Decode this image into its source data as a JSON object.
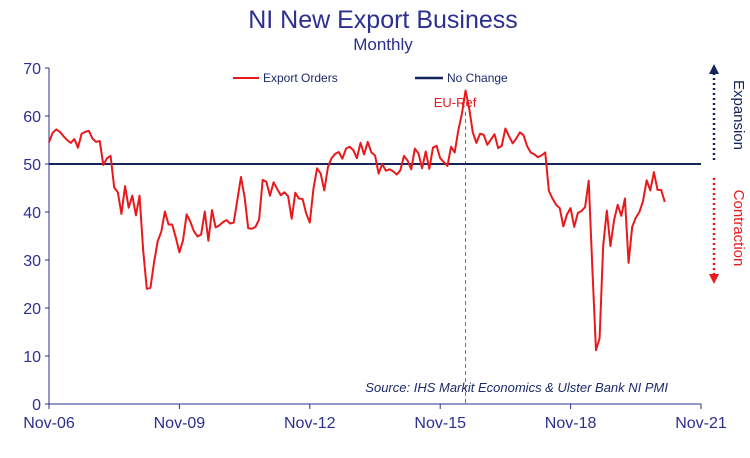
{
  "chart_data": {
    "type": "line",
    "title": "NI New Export Business",
    "subtitle": "Monthly",
    "xlabel": "",
    "ylabel": "",
    "ylim": [
      0,
      70
    ],
    "yticks": [
      0,
      10,
      20,
      30,
      40,
      50,
      60,
      70
    ],
    "xlim": [
      "2006-11",
      "2021-11"
    ],
    "xticks": [
      "Nov-06",
      "Nov-09",
      "Nov-12",
      "Nov-15",
      "Nov-18",
      "Nov-21"
    ],
    "grid": false,
    "legend_position": "top",
    "series": [
      {
        "name": "Export Orders",
        "color": "#e8191c",
        "start": "2006-11",
        "frequency": "monthly",
        "values": [
          54.5,
          56.5,
          57.2,
          56.7,
          55.8,
          55.0,
          54.4,
          55.2,
          53.4,
          56.3,
          56.7,
          56.9,
          55.3,
          54.6,
          54.8,
          49.8,
          51.2,
          51.7,
          45.1,
          44.1,
          39.6,
          45.4,
          40.9,
          43.4,
          39.3,
          43.4,
          32.0,
          24.0,
          24.2,
          29.5,
          33.9,
          35.9,
          40.1,
          37.4,
          37.4,
          34.7,
          31.6,
          34.1,
          39.5,
          38.0,
          36.0,
          34.9,
          35.3,
          40.1,
          34.0,
          40.4,
          36.8,
          37.2,
          37.9,
          38.3,
          37.6,
          37.8,
          42.5,
          47.3,
          43.1,
          36.6,
          36.5,
          36.9,
          38.4,
          46.7,
          46.3,
          43.4,
          46.2,
          44.8,
          43.5,
          44.1,
          43.3,
          38.6,
          44.0,
          42.8,
          42.7,
          39.7,
          37.8,
          44.8,
          49.1,
          48.0,
          44.5,
          49.3,
          51.2,
          52.1,
          52.5,
          51.1,
          53.2,
          53.6,
          52.9,
          51.2,
          54.4,
          52.0,
          54.6,
          52.4,
          51.8,
          48.0,
          50.0,
          48.6,
          48.9,
          48.5,
          47.8,
          48.7,
          51.7,
          50.7,
          48.9,
          53.2,
          52.2,
          49.1,
          52.6,
          49.0,
          53.4,
          53.8,
          51.2,
          50.4,
          49.6,
          53.6,
          52.4,
          57.0,
          60.5,
          65.3,
          61.6,
          56.6,
          54.4,
          56.3,
          56.1,
          54.0,
          55.1,
          56.2,
          53.3,
          53.8,
          57.4,
          55.8,
          54.3,
          55.3,
          56.6,
          56.0,
          53.7,
          52.4,
          52.0,
          51.4,
          51.8,
          52.4,
          44.4,
          42.8,
          41.5,
          40.8,
          37.0,
          39.5,
          40.8,
          36.9,
          39.8,
          40.2,
          41.0,
          46.5,
          28.4,
          11.2,
          13.7,
          33.0,
          40.3,
          32.9,
          38.3,
          41.5,
          39.2,
          42.8,
          29.4,
          36.9,
          38.8,
          40.0,
          42.3,
          46.6,
          44.5,
          48.3,
          44.6,
          44.6,
          42.1
        ]
      },
      {
        "name": "No Change",
        "color": "#16245c",
        "values": [
          50,
          50
        ]
      }
    ],
    "annotations": {
      "eu_ref": {
        "label": "EU-Ref",
        "x": "2016-06",
        "color": "#e8191c"
      },
      "source": "Source: IHS Markit Economics & Ulster Bank NI PMI",
      "expansion": {
        "label": "Expansion",
        "color": "#16245c"
      },
      "contraction": {
        "label": "Contraction",
        "color": "#e8191c"
      }
    },
    "axis_color": "#2b2f8f"
  }
}
